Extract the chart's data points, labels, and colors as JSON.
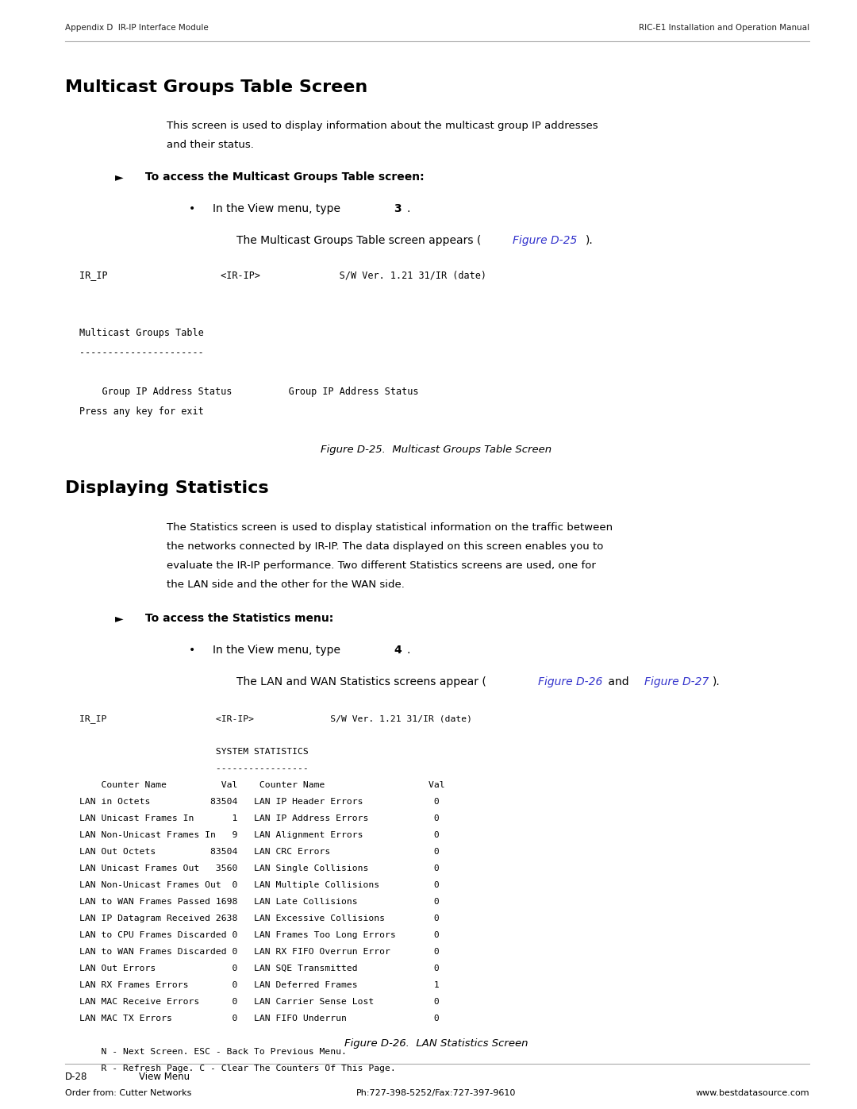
{
  "page_width": 10.8,
  "page_height": 13.97,
  "dpi": 100,
  "bg_color": "#ffffff",
  "header_left": "Appendix D  IR-IP Interface Module",
  "header_right": "RIC-E1 Installation and Operation Manual",
  "footer_left": "D-28",
  "footer_left2": "View Menu",
  "footer_center": "Ph:727-398-5252/Fax:727-397-9610",
  "footer_right": "www.bestdatasource.com",
  "footer_order": "Order from: Cutter Networks",
  "section1_title": "Multicast Groups Table Screen",
  "section1_para1": "This screen is used to display information about the multicast group IP addresses",
  "section1_para2": "and their status.",
  "section1_link": "Figure D-25",
  "fig1_caption": "Figure D-25.  Multicast Groups Table Screen",
  "fig1_lines": [
    "IR_IP                    <IR-IP>              S/W Ver. 1.21 31/IR (date)",
    "",
    "",
    "Multicast Groups Table",
    "----------------------",
    "",
    "    Group IP Address Status          Group IP Address Status",
    "Press any key for exit"
  ],
  "section2_title": "Displaying Statistics",
  "section2_para1": "The Statistics screen is used to display statistical information on the traffic between",
  "section2_para2": "the networks connected by IR-IP. The data displayed on this screen enables you to",
  "section2_para3": "evaluate the IR-IP performance. Two different Statistics screens are used, one for",
  "section2_para4": "the LAN side and the other for the WAN side.",
  "section2_link1": "Figure D-26",
  "section2_link2": "Figure D-27",
  "fig2_caption": "Figure D-26.  LAN Statistics Screen",
  "fig2_lines": [
    "IR_IP                    <IR-IP>              S/W Ver. 1.21 31/IR (date)",
    "",
    "                         SYSTEM STATISTICS",
    "                         -----------------",
    "    Counter Name          Val    Counter Name                   Val",
    "LAN in Octets           83504   LAN IP Header Errors             0",
    "LAN Unicast Frames In       1   LAN IP Address Errors            0",
    "LAN Non-Unicast Frames In   9   LAN Alignment Errors             0",
    "LAN Out Octets          83504   LAN CRC Errors                   0",
    "LAN Unicast Frames Out   3560   LAN Single Collisions            0",
    "LAN Non-Unicast Frames Out  0   LAN Multiple Collisions          0",
    "LAN to WAN Frames Passed 1698   LAN Late Collisions              0",
    "LAN IP Datagram Received 2638   LAN Excessive Collisions         0",
    "LAN to CPU Frames Discarded 0   LAN Frames Too Long Errors       0",
    "LAN to WAN Frames Discarded 0   LAN RX FIFO Overrun Error        0",
    "LAN Out Errors              0   LAN SQE Transmitted              0",
    "LAN RX Frames Errors        0   LAN Deferred Frames              1",
    "LAN MAC Receive Errors      0   LAN Carrier Sense Lost           0",
    "LAN MAC TX Errors           0   LAN FIFO Underrun                0",
    "",
    "    N - Next Screen. ESC - Back To Previous Menu.",
    "    R - Refresh Page. C - Clear The Counters Of This Page."
  ],
  "link_color": "#3333cc",
  "mono_font": "DejaVu Sans Mono",
  "sans_font": "DejaVu Sans"
}
